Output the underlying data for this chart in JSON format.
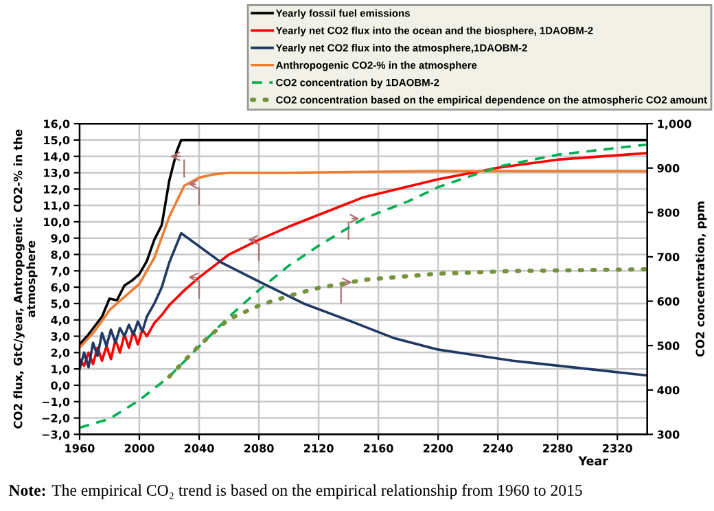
{
  "chart_data": {
    "type": "line",
    "xlabel": "Year",
    "ylabel": "CO2 flux, GtC/year, Antropogenic CO2-% in the\natmosphere",
    "y2label": "CO2 concentration, ppm",
    "annotations": [
      "Note:",
      "The empirical CO₂ trend is based on the empirical relationship from 1960 to 2015"
    ],
    "xlim": [
      1960,
      2340
    ],
    "xticks": [
      1960,
      2000,
      2040,
      2080,
      2120,
      2160,
      2200,
      2240,
      2280,
      2320
    ],
    "ylim": [
      -3,
      16
    ],
    "yticks": [
      {
        "value": -3,
        "label": "−3,0"
      },
      {
        "value": -2,
        "label": "−2,0"
      },
      {
        "value": -1,
        "label": "−1,0"
      },
      {
        "value": 0,
        "label": "0,0"
      },
      {
        "value": 1,
        "label": "1,0"
      },
      {
        "value": 2,
        "label": "2,0"
      },
      {
        "value": 3,
        "label": "3,0"
      },
      {
        "value": 4,
        "label": "4,0"
      },
      {
        "value": 5,
        "label": "5,0"
      },
      {
        "value": 6,
        "label": "6,0"
      },
      {
        "value": 7,
        "label": "7,0"
      },
      {
        "value": 8,
        "label": "8,0"
      },
      {
        "value": 9,
        "label": "9,0"
      },
      {
        "value": 10,
        "label": "10,0"
      },
      {
        "value": 11,
        "label": "11,0"
      },
      {
        "value": 12,
        "label": "12,0"
      },
      {
        "value": 13,
        "label": "13,0"
      },
      {
        "value": 14,
        "label": "14,0"
      },
      {
        "value": 15,
        "label": "15,0"
      },
      {
        "value": 16,
        "label": "16,0"
      }
    ],
    "y2lim": [
      300,
      1000
    ],
    "y2ticks": [
      300,
      400,
      500,
      600,
      700,
      800,
      900,
      {
        "value": 1000,
        "label": "1,000"
      }
    ],
    "grid": true,
    "legend": "top",
    "marker": "none",
    "series": [
      {
        "name": "Yearly fossil fuel emissions",
        "color": "#000000",
        "line_style": "solid",
        "x": [
          1960,
          1965,
          1970,
          1975,
          1980,
          1985,
          1990,
          1995,
          2000,
          2005,
          2010,
          2015,
          2020,
          2025,
          2028,
          2100,
          2200,
          2340
        ],
        "values": [
          2.5,
          3.0,
          3.6,
          4.2,
          5.3,
          5.2,
          6.1,
          6.4,
          6.8,
          7.6,
          8.9,
          9.8,
          12.5,
          14.3,
          15.0,
          15.0,
          15.0,
          15.0
        ]
      },
      {
        "name": "Yearly net CO2 flux into the ocean and the biosphere, 1DAOBM-2",
        "color": "#ff0000",
        "line_style": "solid",
        "x": [
          1960,
          1963,
          1966,
          1969,
          1972,
          1975,
          1978,
          1981,
          1984,
          1987,
          1990,
          1993,
          1996,
          1999,
          2002,
          2005,
          2010,
          2015,
          2020,
          2030,
          2040,
          2060,
          2080,
          2100,
          2150,
          2200,
          2240,
          2280,
          2340
        ],
        "values": [
          1.6,
          1.2,
          2.0,
          1.3,
          2.3,
          1.5,
          2.4,
          1.6,
          2.8,
          2.0,
          3.1,
          2.3,
          3.3,
          2.5,
          3.4,
          3.0,
          3.8,
          4.3,
          4.9,
          5.8,
          6.6,
          8.0,
          8.9,
          9.7,
          11.5,
          12.6,
          13.3,
          13.8,
          14.2
        ]
      },
      {
        "name": "Yearly net CO2 flux into the atmosphere,1DAOBM-2",
        "color": "#1f3864",
        "line_style": "solid",
        "x": [
          1960,
          1963,
          1966,
          1969,
          1972,
          1975,
          1978,
          1981,
          1984,
          1987,
          1990,
          1993,
          1996,
          1999,
          2002,
          2005,
          2010,
          2015,
          2020,
          2028,
          2055,
          2081,
          2110,
          2142,
          2170,
          2199,
          2250,
          2300,
          2340
        ],
        "values": [
          1.0,
          2.0,
          1.1,
          2.6,
          1.8,
          3.2,
          2.4,
          3.4,
          2.6,
          3.5,
          3.0,
          3.7,
          3.1,
          3.9,
          3.3,
          4.2,
          5.0,
          6.0,
          7.5,
          9.3,
          7.5,
          6.3,
          5.0,
          3.9,
          2.9,
          2.2,
          1.5,
          1.0,
          0.6
        ]
      },
      {
        "name": "Anthropogenic CO2-% in the atmosphere",
        "color": "#ed7d31",
        "line_style": "solid",
        "x": [
          1960,
          1970,
          1980,
          1990,
          2000,
          2010,
          2020,
          2030,
          2040,
          2050,
          2060,
          2100,
          2200,
          2340
        ],
        "values": [
          2.3,
          3.3,
          4.6,
          5.4,
          6.2,
          7.8,
          10.3,
          12.2,
          12.7,
          12.9,
          13.0,
          13.0,
          13.1,
          13.1
        ]
      },
      {
        "name": "CO2 concentration by 1DAOBM-2",
        "color": "#00b050",
        "line_style": "dashed",
        "axis": "y2",
        "x": [
          1960,
          1980,
          2000,
          2020,
          2040,
          2060,
          2080,
          2100,
          2120,
          2150,
          2180,
          2200,
          2240,
          2280,
          2340
        ],
        "values": [
          315,
          335,
          377,
          430,
          498,
          565,
          625,
          680,
          725,
          786,
          825,
          857,
          903,
          930,
          953
        ]
      },
      {
        "name": "CO2 concentration based on the empirical dependence on the atmospheric CO2 amount",
        "color": "#76923c",
        "line_style": "dotted",
        "axis": "y2",
        "x": [
          2020,
          2030,
          2040,
          2060,
          2080,
          2100,
          2120,
          2150,
          2200,
          2250,
          2340
        ],
        "values": [
          430,
          465,
          500,
          560,
          590,
          612,
          630,
          648,
          662,
          668,
          672
        ]
      }
    ]
  }
}
